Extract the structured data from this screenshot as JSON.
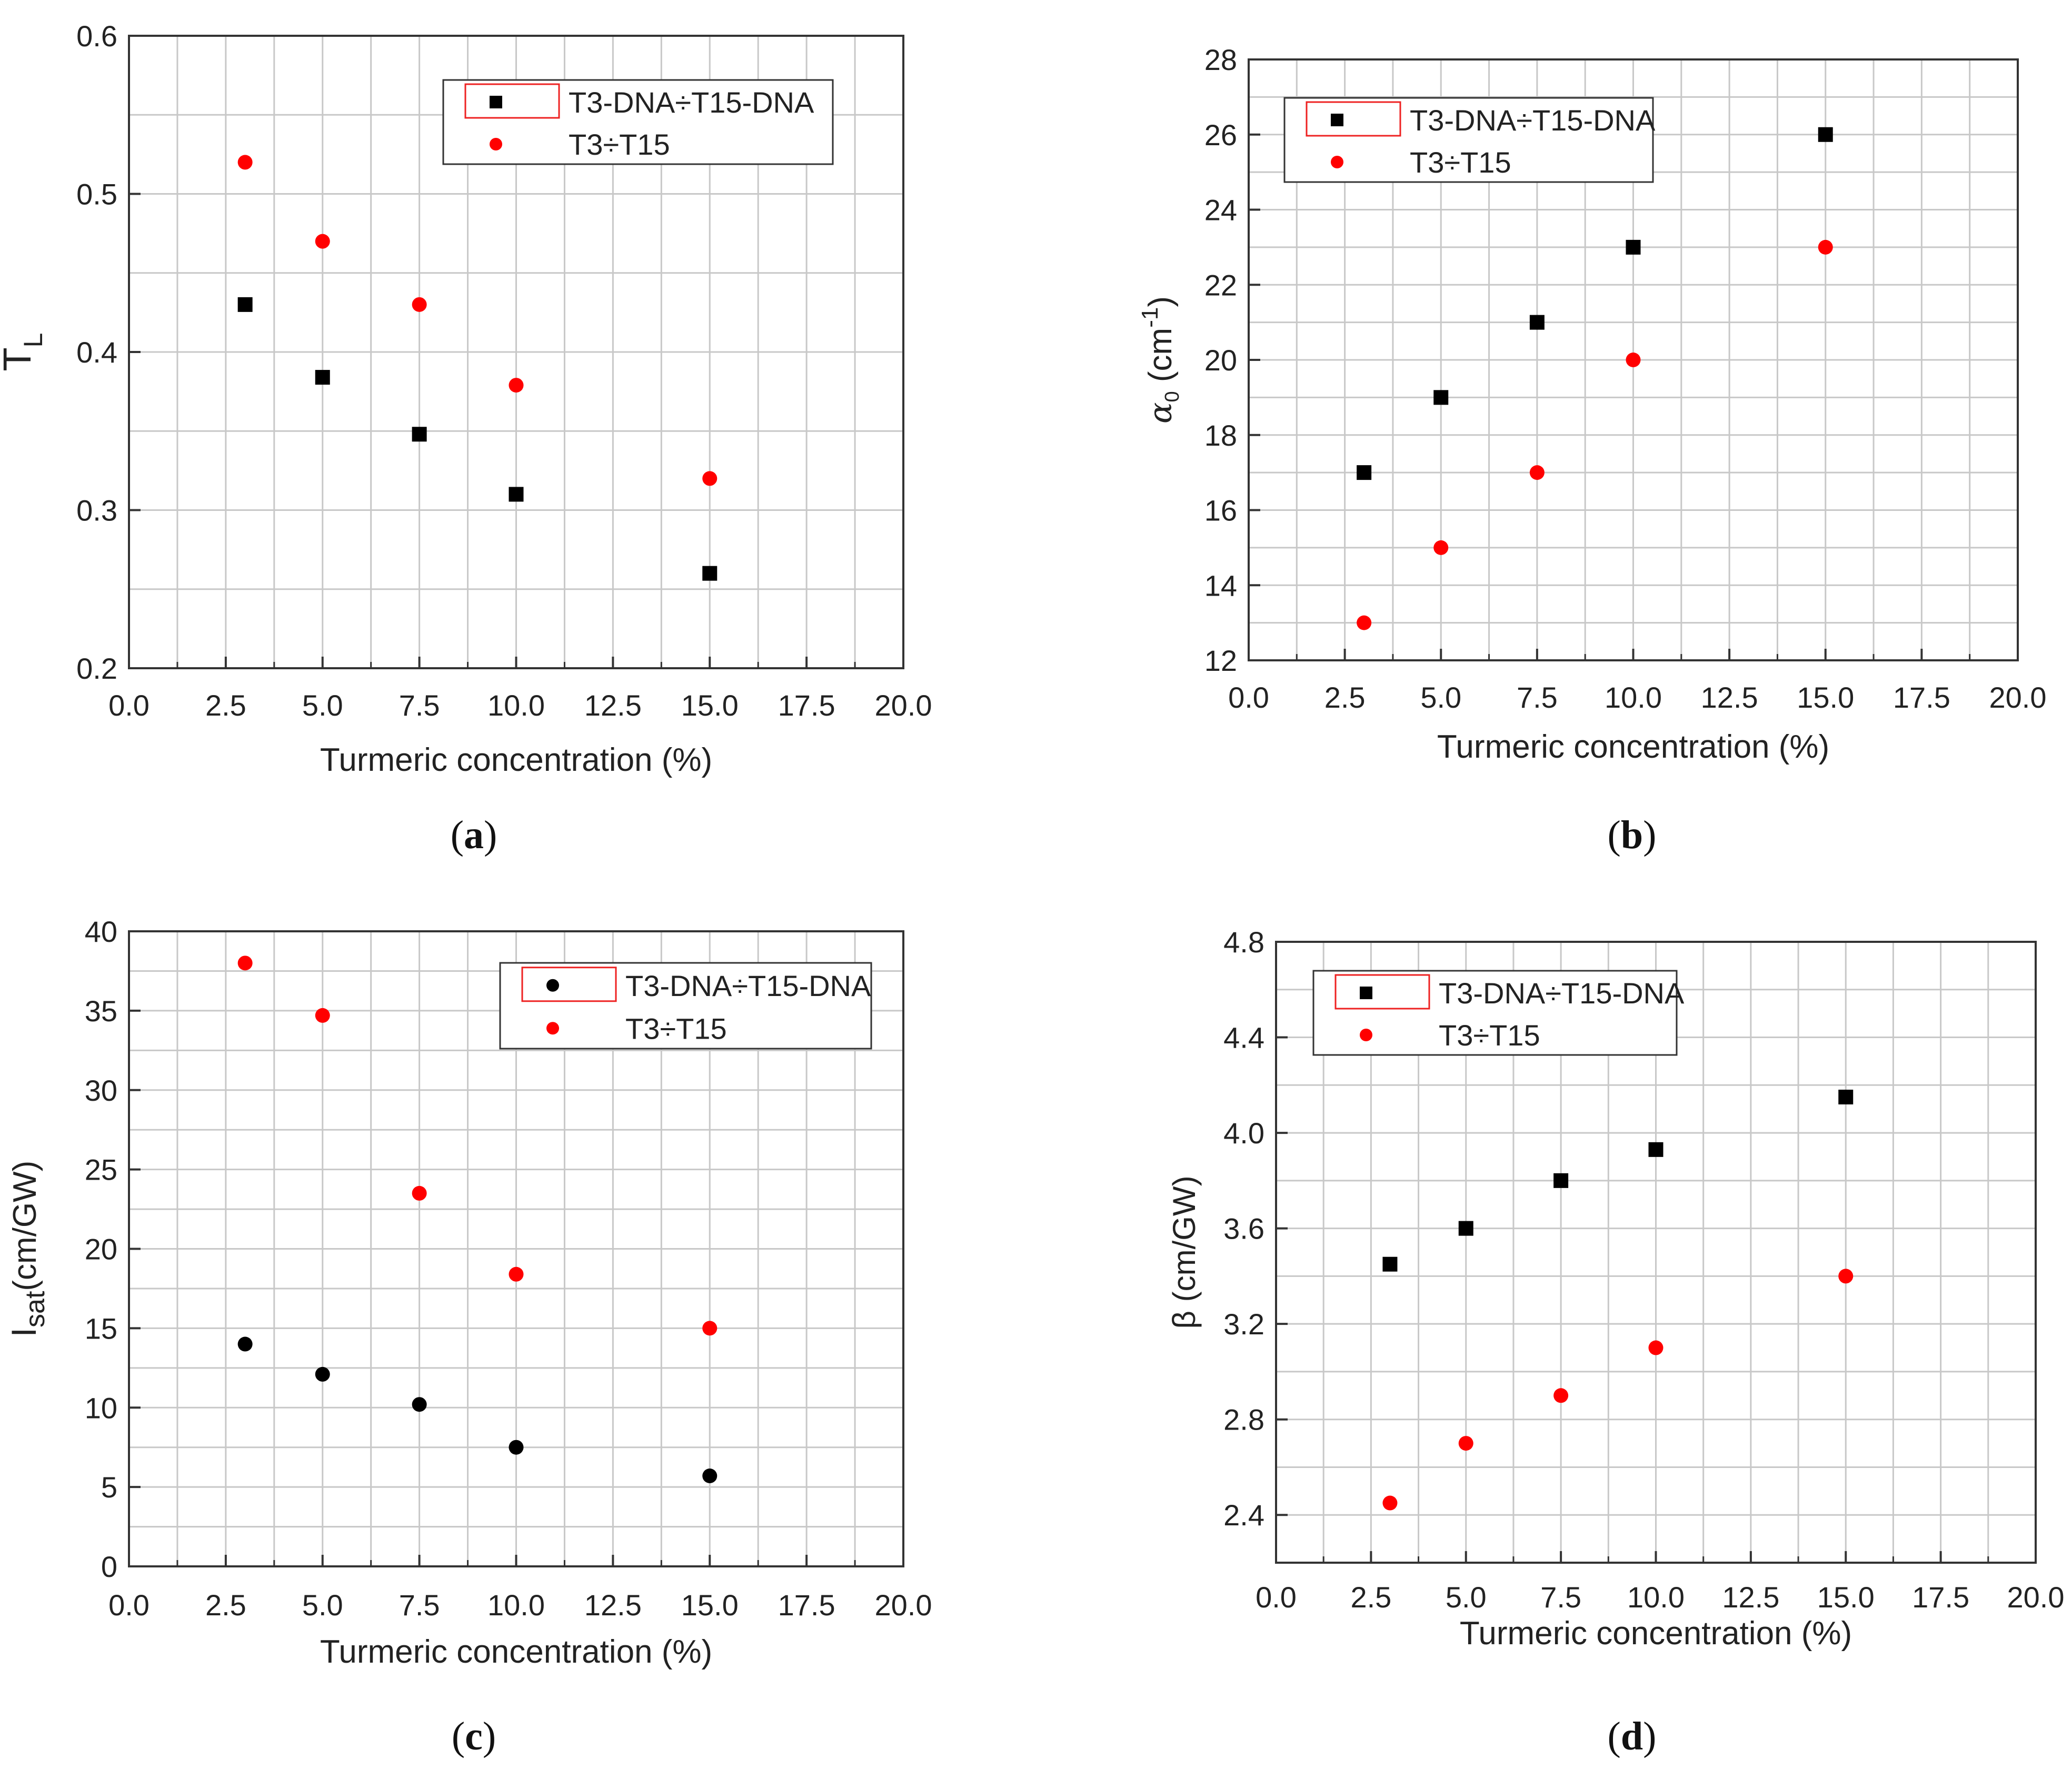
{
  "chart_data": [
    {
      "panel": "(a)",
      "caption_letter": "a",
      "type": "scatter",
      "xlabel": "Turmeric concentration (%)",
      "ylabel_main": "T",
      "ylabel_sub": "L",
      "ylabel_sup": "",
      "ylabel_tail": "",
      "ylabel_style": "subscript",
      "xlim": [
        0,
        20
      ],
      "ylim": [
        0.2,
        0.6
      ],
      "xticks": [
        "0.0",
        "2.5",
        "5.0",
        "7.5",
        "10.0",
        "12.5",
        "15.0",
        "17.5",
        "20.0"
      ],
      "yticks": [
        "0.2",
        "0.3",
        "0.4",
        "0.5",
        "0.6"
      ],
      "grid": true,
      "legend_position": "top-right",
      "series": [
        {
          "name": "T3-DNA÷T15-DNA",
          "marker": "square",
          "color": "#000000",
          "x": [
            3,
            5,
            7.5,
            10,
            15
          ],
          "y": [
            0.43,
            0.384,
            0.348,
            0.31,
            0.26
          ]
        },
        {
          "name": "T3÷T15",
          "marker": "circle",
          "color": "#ff0000",
          "x": [
            3,
            5,
            7.5,
            10,
            15
          ],
          "y": [
            0.52,
            0.47,
            0.43,
            0.379,
            0.32
          ]
        }
      ]
    },
    {
      "panel": "(b)",
      "caption_letter": "b",
      "type": "scatter",
      "xlabel": "Turmeric concentration (%)",
      "ylabel_main": "α",
      "ylabel_sub": "0",
      "ylabel_sup": "-1",
      "ylabel_tail": " (cm",
      "ylabel_close": ")",
      "ylabel_style": "alpha",
      "xlim": [
        0,
        20
      ],
      "ylim": [
        12,
        28
      ],
      "xticks": [
        "0.0",
        "2.5",
        "5.0",
        "7.5",
        "10.0",
        "12.5",
        "15.0",
        "17.5",
        "20.0"
      ],
      "yticks": [
        "12",
        "14",
        "16",
        "18",
        "20",
        "22",
        "24",
        "26",
        "28"
      ],
      "grid": true,
      "legend_position": "top-left",
      "series": [
        {
          "name": "T3-DNA÷T15-DNA",
          "marker": "square",
          "color": "#000000",
          "x": [
            3,
            5,
            7.5,
            10,
            15
          ],
          "y": [
            17,
            19,
            21,
            23,
            26
          ]
        },
        {
          "name": "T3÷T15",
          "marker": "circle",
          "color": "#ff0000",
          "x": [
            3,
            5,
            7.5,
            10,
            15
          ],
          "y": [
            13,
            15,
            17,
            20,
            23
          ]
        }
      ]
    },
    {
      "panel": "(c)",
      "caption_letter": "c",
      "type": "scatter",
      "xlabel": "Turmeric concentration (%)",
      "ylabel_main": "I",
      "ylabel_sub": "sat",
      "ylabel_tail": "(cm/GW)",
      "ylabel_style": "isat",
      "xlim": [
        0,
        20
      ],
      "ylim": [
        0,
        40
      ],
      "xticks": [
        "0.0",
        "2.5",
        "5.0",
        "7.5",
        "10.0",
        "12.5",
        "15.0",
        "17.5",
        "20.0"
      ],
      "yticks": [
        "0",
        "5",
        "10",
        "15",
        "20",
        "25",
        "30",
        "35",
        "40"
      ],
      "grid": true,
      "legend_position": "top-right",
      "series": [
        {
          "name": "T3-DNA÷T15-DNA",
          "marker": "circle",
          "color": "#000000",
          "x": [
            3,
            5,
            7.5,
            10,
            15
          ],
          "y": [
            14,
            12.1,
            10.2,
            7.5,
            5.7
          ]
        },
        {
          "name": "T3÷T15",
          "marker": "circle",
          "color": "#ff0000",
          "x": [
            3,
            5,
            7.5,
            10,
            15
          ],
          "y": [
            38,
            34.7,
            23.5,
            18.4,
            15
          ]
        }
      ]
    },
    {
      "panel": "(d)",
      "caption_letter": "d",
      "type": "scatter",
      "xlabel": "Turmeric concentration (%)",
      "ylabel_main": "β (cm/GW)",
      "ylabel_style": "plain",
      "xlim": [
        0,
        20
      ],
      "ylim": [
        2.2,
        4.8
      ],
      "xticks": [
        "0.0",
        "2.5",
        "5.0",
        "7.5",
        "10.0",
        "12.5",
        "15.0",
        "17.5",
        "20.0"
      ],
      "yticks": [
        "2.4",
        "2.8",
        "3.2",
        "3.6",
        "4.0",
        "4.4",
        "4.8"
      ],
      "grid": true,
      "legend_position": "top-left",
      "series": [
        {
          "name": "T3-DNA÷T15-DNA",
          "marker": "square",
          "color": "#000000",
          "x": [
            3,
            5,
            7.5,
            10,
            15
          ],
          "y": [
            3.45,
            3.6,
            3.8,
            3.93,
            4.15
          ]
        },
        {
          "name": "T3÷T15",
          "marker": "circle",
          "color": "#ff0000",
          "x": [
            3,
            5,
            7.5,
            10,
            15
          ],
          "y": [
            2.45,
            2.7,
            2.9,
            3.1,
            3.4
          ]
        }
      ]
    }
  ]
}
